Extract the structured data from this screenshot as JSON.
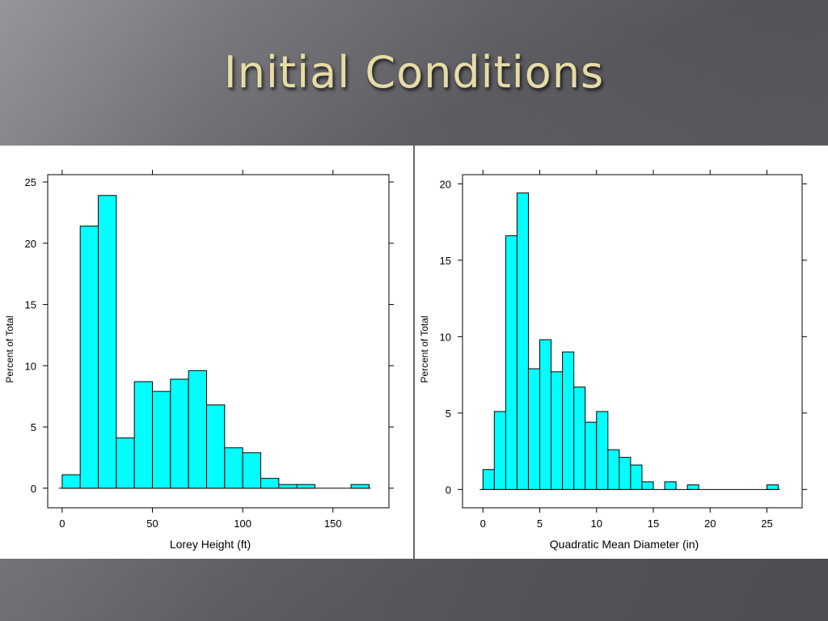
{
  "slide": {
    "title": "Initial Conditions"
  },
  "chart_data": [
    {
      "type": "bar",
      "subtype": "histogram",
      "xlabel": "Lorey Height (ft)",
      "ylabel": "Percent of Total",
      "xlim": [
        -8,
        181
      ],
      "ylim": [
        -1.6,
        25.6
      ],
      "xticks": [
        0,
        50,
        100,
        150
      ],
      "yticks": [
        0,
        5,
        10,
        15,
        20,
        25
      ],
      "grid": false,
      "bar_color": "#00ffff",
      "bins": [
        {
          "x0": 0,
          "x1": 10,
          "value": 1.1
        },
        {
          "x0": 10,
          "x1": 20,
          "value": 21.4
        },
        {
          "x0": 20,
          "x1": 30,
          "value": 23.9
        },
        {
          "x0": 30,
          "x1": 40,
          "value": 4.1
        },
        {
          "x0": 40,
          "x1": 50,
          "value": 8.7
        },
        {
          "x0": 50,
          "x1": 60,
          "value": 7.9
        },
        {
          "x0": 60,
          "x1": 70,
          "value": 8.9
        },
        {
          "x0": 70,
          "x1": 80,
          "value": 9.6
        },
        {
          "x0": 80,
          "x1": 90,
          "value": 6.8
        },
        {
          "x0": 90,
          "x1": 100,
          "value": 3.3
        },
        {
          "x0": 100,
          "x1": 110,
          "value": 2.9
        },
        {
          "x0": 110,
          "x1": 120,
          "value": 0.8
        },
        {
          "x0": 120,
          "x1": 130,
          "value": 0.3
        },
        {
          "x0": 130,
          "x1": 140,
          "value": 0.3
        },
        {
          "x0": 140,
          "x1": 150,
          "value": 0
        },
        {
          "x0": 150,
          "x1": 160,
          "value": 0
        },
        {
          "x0": 160,
          "x1": 170,
          "value": 0.3
        }
      ]
    },
    {
      "type": "bar",
      "subtype": "histogram",
      "xlabel": "Quadratic Mean Diameter (in)",
      "ylabel": "Percent of Total",
      "xlim": [
        -1.8,
        28.1
      ],
      "ylim": [
        -1.2,
        20.6
      ],
      "xticks": [
        0,
        5,
        10,
        15,
        20,
        25
      ],
      "yticks": [
        0,
        5,
        10,
        15,
        20
      ],
      "grid": false,
      "bar_color": "#00ffff",
      "bins": [
        {
          "x0": 0,
          "x1": 1,
          "value": 1.3
        },
        {
          "x0": 1,
          "x1": 2,
          "value": 5.1
        },
        {
          "x0": 2,
          "x1": 3,
          "value": 16.6
        },
        {
          "x0": 3,
          "x1": 4,
          "value": 19.4
        },
        {
          "x0": 4,
          "x1": 5,
          "value": 7.9
        },
        {
          "x0": 5,
          "x1": 6,
          "value": 9.8
        },
        {
          "x0": 6,
          "x1": 7,
          "value": 7.7
        },
        {
          "x0": 7,
          "x1": 8,
          "value": 9.0
        },
        {
          "x0": 8,
          "x1": 9,
          "value": 6.7
        },
        {
          "x0": 9,
          "x1": 10,
          "value": 4.4
        },
        {
          "x0": 10,
          "x1": 11,
          "value": 5.1
        },
        {
          "x0": 11,
          "x1": 12,
          "value": 2.6
        },
        {
          "x0": 12,
          "x1": 13,
          "value": 2.1
        },
        {
          "x0": 13,
          "x1": 14,
          "value": 1.6
        },
        {
          "x0": 14,
          "x1": 15,
          "value": 0.5
        },
        {
          "x0": 15,
          "x1": 16,
          "value": 0
        },
        {
          "x0": 16,
          "x1": 17,
          "value": 0.5
        },
        {
          "x0": 17,
          "x1": 18,
          "value": 0
        },
        {
          "x0": 18,
          "x1": 19,
          "value": 0.3
        },
        {
          "x0": 19,
          "x1": 20,
          "value": 0
        },
        {
          "x0": 20,
          "x1": 21,
          "value": 0
        },
        {
          "x0": 21,
          "x1": 22,
          "value": 0
        },
        {
          "x0": 22,
          "x1": 23,
          "value": 0
        },
        {
          "x0": 23,
          "x1": 24,
          "value": 0
        },
        {
          "x0": 24,
          "x1": 25,
          "value": 0
        },
        {
          "x0": 25,
          "x1": 26,
          "value": 0.3
        }
      ]
    }
  ]
}
